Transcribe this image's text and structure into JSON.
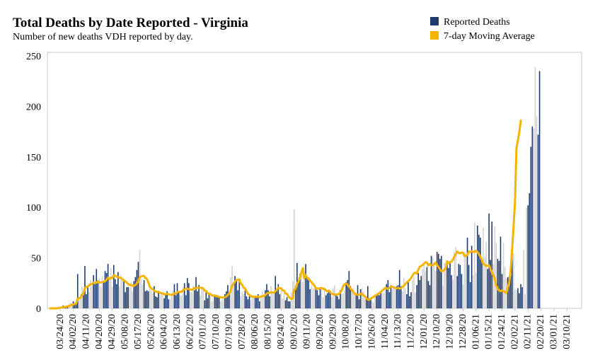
{
  "title": "Total Deaths by Date Reported - Virginia",
  "subtitle": "Number of new deaths VDH reported by day.",
  "legend": [
    {
      "label": "Reported Deaths",
      "color": "#1f3b6e",
      "shape": "square"
    },
    {
      "label": "7-day Moving Average",
      "color": "#f5b400",
      "shape": "square-with-line"
    }
  ],
  "colors": {
    "bar_highlight": "#1f3b6e",
    "bar_other": "#d3d3d3",
    "average_line": "#f5b400",
    "axis": "#c8c8c8"
  },
  "chart_data": {
    "type": "bar",
    "title": "Total Deaths by Date Reported - Virginia",
    "subtitle": "Number of new deaths VDH reported by day.",
    "grid": false,
    "legend_position": "top-right",
    "ylim": [
      0,
      250
    ],
    "y_ticks": [
      0,
      50,
      100,
      150,
      200,
      250
    ],
    "x_range": [
      "03/17/20",
      "03/14/21"
    ],
    "x_ticks": [
      "03/24/20",
      "04/02/20",
      "04/11/20",
      "04/20/20",
      "04/29/20",
      "05/08/20",
      "05/17/20",
      "05/26/20",
      "06/04/20",
      "06/13/20",
      "06/22/20",
      "07/01/20",
      "07/10/20",
      "07/19/20",
      "07/28/20",
      "08/06/20",
      "08/15/20",
      "08/24/20",
      "09/02/20",
      "09/11/20",
      "09/20/20",
      "09/29/20",
      "10/08/20",
      "10/17/20",
      "10/26/20",
      "11/04/20",
      "11/13/20",
      "11/22/20",
      "12/01/20",
      "12/10/20",
      "12/19/20",
      "12/28/20",
      "01/06/21",
      "01/15/21",
      "01/24/21",
      "02/02/21",
      "02/11/21",
      "02/20/21",
      "03/01/21",
      "03/10/21"
    ],
    "series": [
      {
        "name": "Reported Deaths",
        "type": "bar",
        "start_date": "03/17/20",
        "values": [
          0,
          0,
          0,
          1,
          0,
          0,
          2,
          1,
          2,
          3,
          1,
          2,
          3,
          4,
          6,
          5,
          7,
          4,
          6,
          34,
          8,
          14,
          22,
          13,
          42,
          14,
          21,
          16,
          28,
          22,
          33,
          24,
          39,
          25,
          30,
          21,
          32,
          26,
          37,
          35,
          44,
          28,
          40,
          21,
          43,
          29,
          24,
          36,
          21,
          33,
          28,
          27,
          16,
          21,
          21,
          21,
          26,
          17,
          27,
          31,
          38,
          46,
          58,
          29,
          24,
          28,
          17,
          18,
          17,
          20,
          18,
          15,
          22,
          12,
          11,
          17,
          13,
          14,
          15,
          10,
          13,
          17,
          9,
          9,
          12,
          18,
          24,
          13,
          25,
          17,
          13,
          13,
          21,
          25,
          13,
          30,
          25,
          16,
          16,
          22,
          18,
          31,
          17,
          23,
          13,
          21,
          20,
          8,
          16,
          10,
          15,
          16,
          7,
          11,
          13,
          11,
          12,
          11,
          7,
          9,
          12,
          14,
          17,
          23,
          16,
          31,
          42,
          25,
          32,
          29,
          18,
          28,
          12,
          17,
          14,
          18,
          12,
          9,
          12,
          8,
          11,
          12,
          12,
          12,
          14,
          7,
          12,
          17,
          12,
          18,
          24,
          18,
          12,
          22,
          16,
          14,
          32,
          17,
          24,
          14,
          18,
          10,
          15,
          8,
          11,
          7,
          7,
          16,
          27,
          98,
          22,
          45,
          26,
          34,
          38,
          26,
          32,
          44,
          29,
          28,
          19,
          23,
          20,
          23,
          20,
          18,
          13,
          19,
          20,
          11,
          21,
          13,
          15,
          18,
          15,
          12,
          20,
          23,
          13,
          12,
          9,
          18,
          14,
          15,
          18,
          26,
          28,
          37,
          22,
          18,
          20,
          14,
          15,
          23,
          9,
          19,
          20,
          17,
          12,
          12,
          22,
          10,
          9,
          7,
          6,
          12,
          13,
          15,
          13,
          15,
          16,
          15,
          21,
          24,
          28,
          16,
          23,
          19,
          20,
          19,
          22,
          23,
          38,
          22,
          17,
          30,
          20,
          14,
          27,
          12,
          16,
          28,
          31,
          16,
          23,
          35,
          28,
          32,
          39,
          43,
          37,
          41,
          27,
          23,
          52,
          51,
          42,
          37,
          56,
          54,
          49,
          52,
          23,
          45,
          45,
          45,
          40,
          45,
          33,
          29,
          56,
          61,
          32,
          44,
          43,
          34,
          24,
          56,
          54,
          70,
          43,
          26,
          62,
          33,
          85,
          35,
          82,
          73,
          70,
          49,
          80,
          51,
          66,
          39,
          94,
          48,
          86,
          44,
          81,
          65,
          49,
          47,
          71,
          34,
          65,
          41,
          30,
          31,
          29,
          33,
          57,
          54,
          19,
          18,
          20,
          15,
          24,
          21,
          58,
          14,
          100,
          102,
          114,
          160,
          180,
          178,
          239,
          190,
          172,
          235
        ]
      },
      {
        "name": "7-day Moving Average",
        "type": "line",
        "values": [
          0,
          0,
          0,
          0.1,
          0.1,
          0.1,
          0.4,
          0.6,
          0.9,
          1.3,
          1.4,
          1.6,
          2.0,
          2.3,
          3.0,
          3.4,
          4.0,
          4.3,
          5.0,
          9.6,
          9.9,
          10.7,
          13.3,
          14.6,
          19.9,
          21.4,
          21.6,
          23.0,
          23.9,
          23.9,
          25.6,
          25.3,
          25.3,
          26.9,
          25.6,
          25.7,
          25.9,
          26.3,
          26.9,
          28.4,
          30.4,
          29.1,
          30.3,
          30.0,
          32.9,
          32.4,
          31.4,
          31.0,
          30.4,
          30.1,
          29.1,
          27.7,
          26.9,
          25.5,
          24.3,
          23.1,
          23.3,
          22.4,
          22.4,
          23.1,
          24.6,
          27.1,
          30.6,
          31.8,
          32.0,
          32.2,
          30.0,
          29.1,
          25.6,
          21.4,
          19.8,
          18.9,
          17.4,
          16.6,
          16.3,
          16.5,
          15.4,
          14.9,
          14.9,
          13.9,
          13.9,
          14.7,
          13.9,
          13.5,
          13.4,
          13.6,
          14.9,
          14.6,
          16.1,
          16.4,
          16.3,
          16.4,
          17.9,
          18.9,
          19.4,
          19.4,
          19.1,
          18.4,
          18.6,
          18.9,
          20.3,
          20.0,
          20.4,
          20.4,
          20.4,
          20.4,
          19.7,
          17.6,
          17.1,
          15.1,
          14.4,
          14.0,
          13.0,
          12.4,
          12.9,
          12.3,
          11.9,
          11.3,
          10.9,
          10.7,
          11.0,
          11.1,
          11.7,
          13.3,
          14.6,
          17.6,
          22.4,
          24.3,
          26.6,
          28.1,
          28.3,
          28.7,
          24.4,
          23.4,
          20.3,
          19.8,
          16.7,
          14.3,
          13.4,
          11.6,
          11.9,
          11.4,
          11.5,
          11.4,
          11.7,
          11.1,
          11.6,
          12.3,
          12.3,
          13.1,
          14.7,
          15.3,
          15.4,
          16.1,
          15.7,
          15.6,
          16.8,
          18.4,
          20.4,
          19.9,
          19.9,
          17.9,
          17.7,
          14.7,
          14.4,
          11.9,
          10.4,
          9.3,
          10.0,
          18.4,
          19.4,
          24.7,
          26.6,
          30.9,
          35.3,
          39.9,
          29.6,
          33.1,
          30.0,
          29.6,
          27.6,
          26.0,
          24.1,
          22.9,
          19.7,
          19.9,
          19.3,
          20.0,
          20.3,
          19.4,
          19.1,
          17.7,
          17.0,
          17.6,
          16.1,
          14.4,
          14.3,
          13.3,
          13.9,
          13.7,
          14.2,
          15.9,
          18.0,
          22.4,
          23.9,
          24.6,
          23.7,
          21.6,
          19.9,
          18.1,
          16.1,
          14.4,
          14.1,
          13.4,
          13.6,
          14.4,
          14.1,
          13.1,
          12.1,
          10.1,
          8.7,
          8.4,
          9.6,
          10.7,
          11.3,
          12.4,
          13.3,
          14.2,
          15.0,
          16.3,
          17.7,
          19.0,
          20.3,
          19.9,
          19.4,
          20.4,
          21.6,
          21.3,
          20.9,
          20.2,
          19.9,
          20.4,
          19.6,
          19.9,
          21.3,
          22.4,
          23.9,
          25.7,
          27.1,
          28.1,
          30.1,
          32.6,
          34.7,
          35.4,
          34.4,
          38.4,
          41.2,
          42.1,
          42.9,
          44.3,
          45.7,
          45.3,
          42.6,
          43.9,
          42.5,
          42.6,
          44.0,
          45.3,
          42.7,
          40.9,
          38.6,
          36.7,
          36.9,
          38.2,
          39.6,
          46.7,
          44.6,
          45.7,
          46.4,
          48.3,
          51.4,
          53.8,
          56.3,
          54.8,
          54.5,
          55.3,
          55.0,
          51.7,
          52.1,
          52.7,
          56.2,
          55.9,
          56.7,
          56.0,
          55.9,
          57.0,
          56.0,
          53.3,
          51.6,
          47.6,
          44.0,
          43.3,
          42.0,
          42.1,
          42.7,
          39.0,
          35.7,
          32.7,
          29.4,
          22.7,
          19.6,
          17.7,
          17.1,
          17.7,
          17.1,
          16.1,
          15.1,
          20.4,
          26.0,
          38.0,
          58.6,
          81.0,
          106.0,
          159.0,
          166.7,
          174.6,
          186.0
        ]
      }
    ]
  }
}
